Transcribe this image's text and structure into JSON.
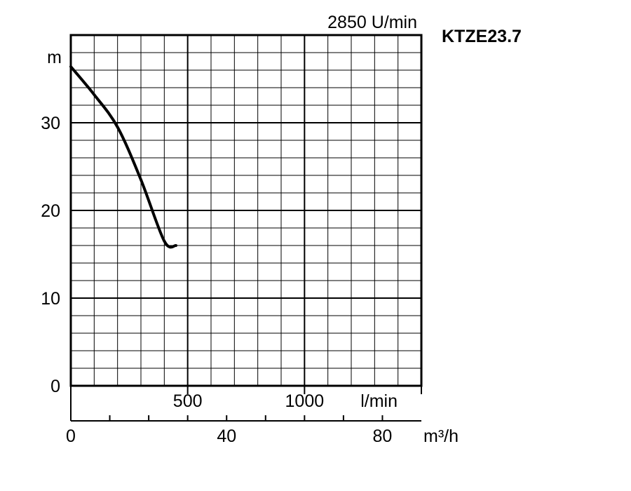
{
  "chart_data": {
    "type": "line",
    "model": "KTZE23.7",
    "speed_label": "2850 U/min",
    "y_unit": "m",
    "ylim": [
      0,
      40
    ],
    "y_ticks": [
      0,
      10,
      20,
      30
    ],
    "x_lmin_unit": "l/min",
    "x_lmin_range": [
      0,
      1500
    ],
    "x_lmin_ticks": [
      500,
      1000
    ],
    "x_m3h_unit": "m³/h",
    "x_m3h_range": [
      0,
      90
    ],
    "x_m3h_ticks": [
      0,
      40,
      80
    ],
    "grid": true,
    "series": [
      {
        "x_lmin": [
          0,
          100,
          200,
          300,
          400,
          450
        ],
        "y_m": [
          36.4,
          33.2,
          29.5,
          23.5,
          16.5,
          16.0
        ]
      }
    ]
  }
}
